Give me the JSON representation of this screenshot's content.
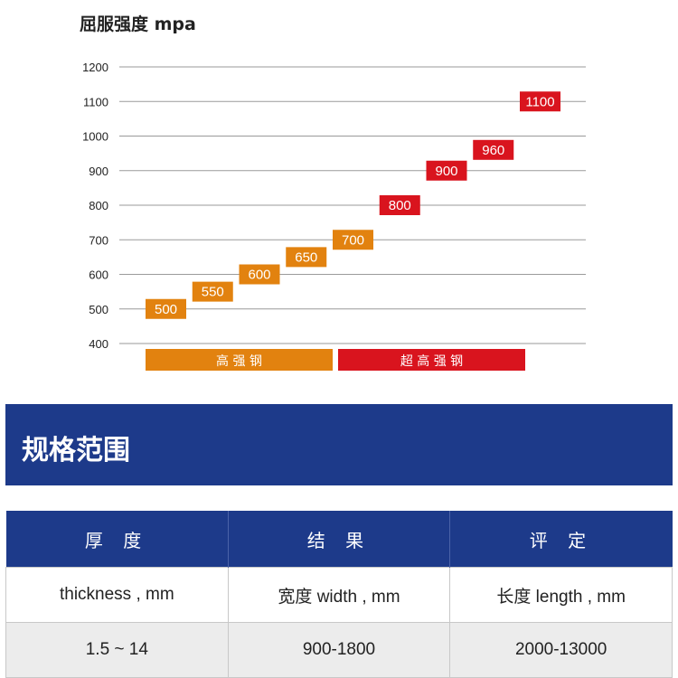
{
  "chart_data": {
    "type": "bar",
    "title": "屈服强度  mpa",
    "yticks": [
      400,
      500,
      600,
      700,
      800,
      900,
      1000,
      1100,
      1200
    ],
    "ylim": [
      400,
      1200
    ],
    "values": [
      500,
      550,
      600,
      650,
      700,
      800,
      900,
      960,
      1100
    ],
    "groups": [
      {
        "label": "高 强 钢",
        "color": "#e2820f",
        "count": 5
      },
      {
        "label": "超 高 强 钢",
        "color": "#d9141e",
        "count": 4
      }
    ],
    "grid": true
  },
  "section": {
    "title": "规格范围"
  },
  "table": {
    "headers": [
      "厚 度",
      "结 果",
      "评 定"
    ],
    "subheaders": [
      "thickness , mm",
      "宽度 width , mm",
      "长度 length , mm"
    ],
    "values": [
      "1.5 ~ 14",
      "900-1800",
      "2000-13000"
    ]
  },
  "colors": {
    "orange": "#e2820f",
    "red": "#d9141e",
    "navy": "#1d3a8a"
  }
}
